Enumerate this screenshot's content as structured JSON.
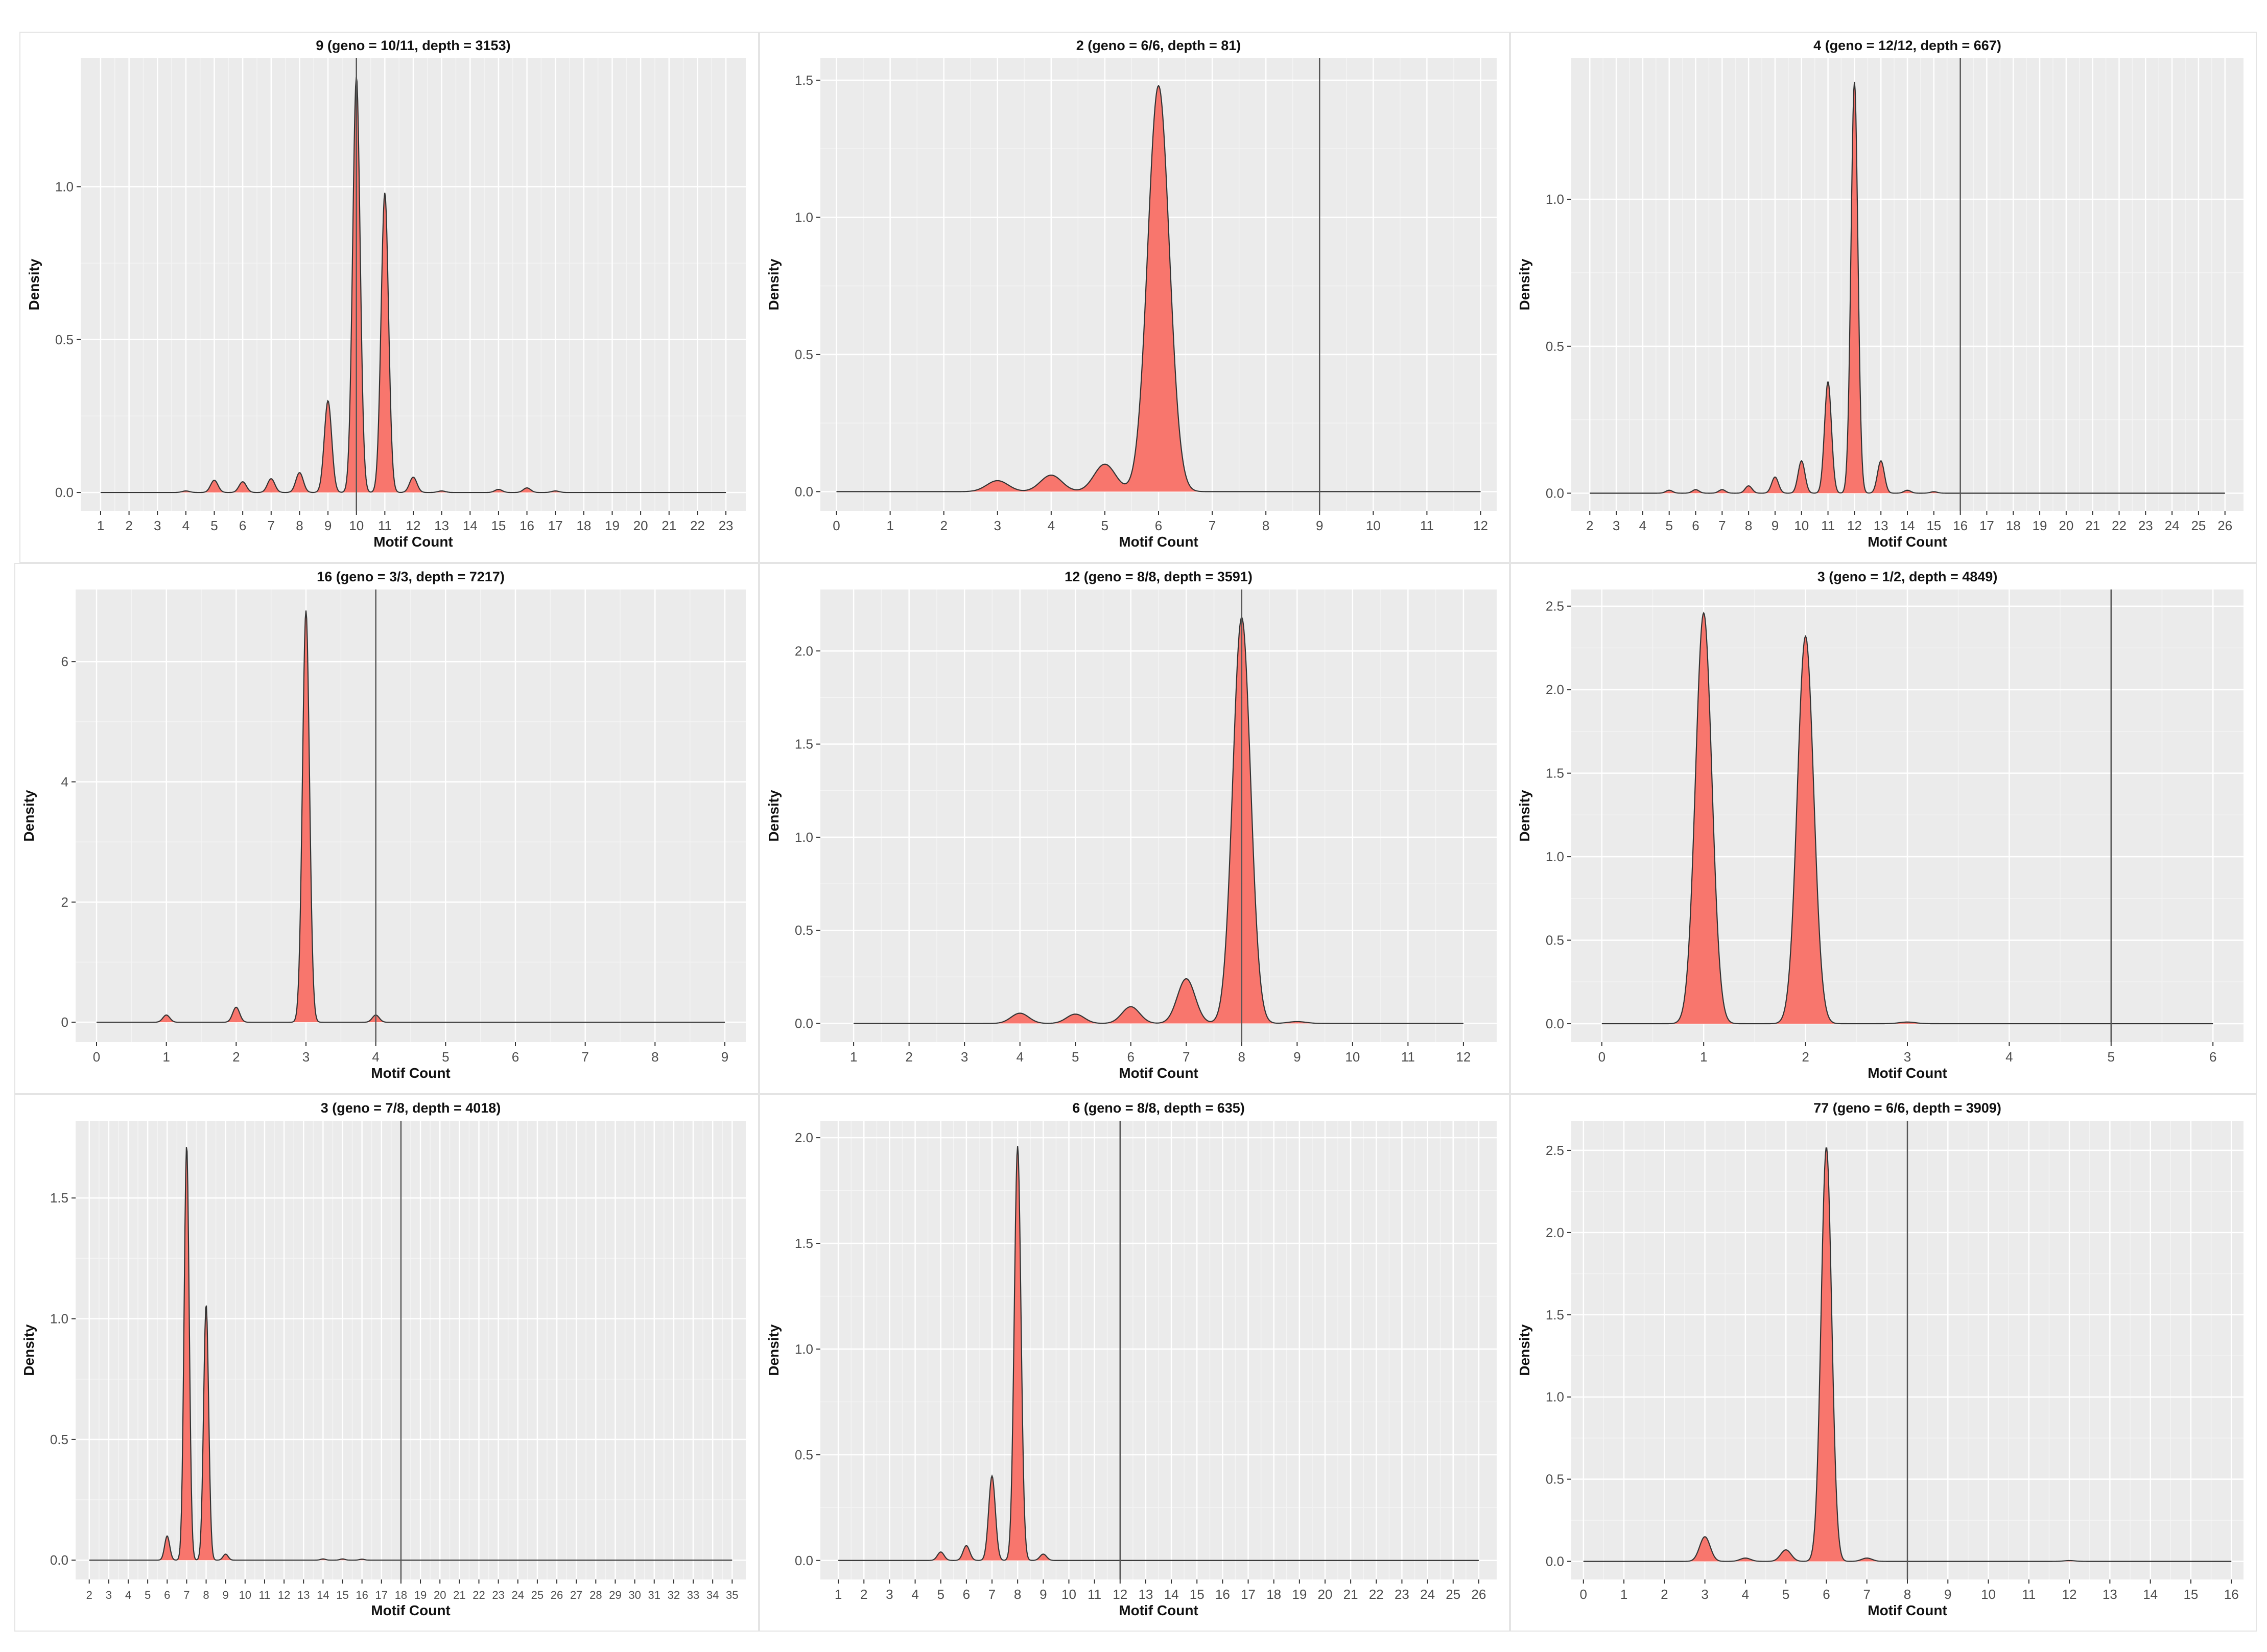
{
  "chart_data": [
    {
      "type": "area",
      "title": "9 (geno = 10/11, depth = 3153)",
      "xlabel": "Motif Count",
      "ylabel": "Density",
      "xlim": [
        0.3,
        23.7
      ],
      "ylim": [
        -0.06,
        1.42
      ],
      "x_ticks": [
        1,
        2,
        3,
        4,
        5,
        6,
        7,
        8,
        9,
        10,
        11,
        12,
        13,
        14,
        15,
        16,
        17,
        18,
        19,
        20,
        21,
        22,
        23
      ],
      "y_ticks": [
        0.0,
        0.5,
        1.0
      ],
      "y_tick_labels": [
        "0.0",
        "0.5",
        "1.0"
      ],
      "x_range": [
        1,
        23
      ],
      "vline_x": 10,
      "grid": true,
      "fill_color": "#f8766d",
      "peaks": [
        {
          "x": 4,
          "y": 0.005
        },
        {
          "x": 5,
          "y": 0.04
        },
        {
          "x": 6,
          "y": 0.035
        },
        {
          "x": 7,
          "y": 0.045
        },
        {
          "x": 8,
          "y": 0.065
        },
        {
          "x": 9,
          "y": 0.3
        },
        {
          "x": 10,
          "y": 1.36
        },
        {
          "x": 11,
          "y": 0.98
        },
        {
          "x": 12,
          "y": 0.05
        },
        {
          "x": 13,
          "y": 0.005
        },
        {
          "x": 15,
          "y": 0.01
        },
        {
          "x": 16,
          "y": 0.015
        },
        {
          "x": 17,
          "y": 0.005
        }
      ]
    },
    {
      "type": "area",
      "title": "2 (geno = 6/6, depth = 81)",
      "xlabel": "Motif Count",
      "ylabel": "Density",
      "xlim": [
        -0.3,
        12.3
      ],
      "ylim": [
        -0.07,
        1.58
      ],
      "x_ticks": [
        0,
        1,
        2,
        3,
        4,
        5,
        6,
        7,
        8,
        9,
        10,
        11,
        12
      ],
      "y_ticks": [
        0.0,
        0.5,
        1.0,
        1.5
      ],
      "y_tick_labels": [
        "0.0",
        "0.5",
        "1.0",
        "1.5"
      ],
      "x_range": [
        0,
        12
      ],
      "vline_x": 9,
      "grid": true,
      "fill_color": "#f8766d",
      "bandwidth": 0.2,
      "peaks": [
        {
          "x": 3,
          "y": 0.04
        },
        {
          "x": 4,
          "y": 0.06
        },
        {
          "x": 5,
          "y": 0.1
        },
        {
          "x": 6,
          "y": 1.48
        }
      ]
    },
    {
      "type": "area",
      "title": "4 (geno = 12/12, depth = 667)",
      "xlabel": "Motif Count",
      "ylabel": "Density",
      "xlim": [
        1.3,
        26.7
      ],
      "ylim": [
        -0.06,
        1.48
      ],
      "x_ticks": [
        2,
        3,
        4,
        5,
        6,
        7,
        8,
        9,
        10,
        11,
        12,
        13,
        14,
        15,
        16,
        17,
        18,
        19,
        20,
        21,
        22,
        23,
        24,
        25,
        26
      ],
      "y_ticks": [
        0.0,
        0.5,
        1.0
      ],
      "y_tick_labels": [
        "0.0",
        "0.5",
        "1.0"
      ],
      "x_range": [
        2,
        26
      ],
      "vline_x": 16,
      "grid": true,
      "fill_color": "#f8766d",
      "peaks": [
        {
          "x": 5,
          "y": 0.01
        },
        {
          "x": 6,
          "y": 0.012
        },
        {
          "x": 7,
          "y": 0.012
        },
        {
          "x": 8,
          "y": 0.025
        },
        {
          "x": 9,
          "y": 0.055
        },
        {
          "x": 10,
          "y": 0.11
        },
        {
          "x": 11,
          "y": 0.38
        },
        {
          "x": 12,
          "y": 1.4
        },
        {
          "x": 13,
          "y": 0.11
        },
        {
          "x": 14,
          "y": 0.01
        },
        {
          "x": 15,
          "y": 0.005
        }
      ]
    },
    {
      "type": "area",
      "title": "16 (geno = 3/3, depth = 7217)",
      "xlabel": "Motif Count",
      "ylabel": "Density",
      "xlim": [
        -0.3,
        9.3
      ],
      "ylim": [
        -0.33,
        7.2
      ],
      "x_ticks": [
        0,
        1,
        2,
        3,
        4,
        5,
        6,
        7,
        8,
        9
      ],
      "y_ticks": [
        0,
        2,
        4,
        6
      ],
      "y_tick_labels": [
        "0",
        "2",
        "4",
        "6"
      ],
      "x_range": [
        0,
        9
      ],
      "vline_x": 4,
      "grid": true,
      "fill_color": "#f8766d",
      "bandwidth": 0.05,
      "peaks": [
        {
          "x": 1,
          "y": 0.12
        },
        {
          "x": 2,
          "y": 0.25
        },
        {
          "x": 3,
          "y": 6.85
        },
        {
          "x": 4,
          "y": 0.12
        }
      ]
    },
    {
      "type": "area",
      "title": "12 (geno = 8/8, depth = 3591)",
      "xlabel": "Motif Count",
      "ylabel": "Density",
      "xlim": [
        0.4,
        12.6
      ],
      "ylim": [
        -0.1,
        2.33
      ],
      "x_ticks": [
        1,
        2,
        3,
        4,
        5,
        6,
        7,
        8,
        9,
        10,
        11,
        12
      ],
      "y_ticks": [
        0.0,
        0.5,
        1.0,
        1.5,
        2.0
      ],
      "y_tick_labels": [
        "0.0",
        "0.5",
        "1.0",
        "1.5",
        "2.0"
      ],
      "x_range": [
        1,
        12
      ],
      "vline_x": 8,
      "grid": true,
      "fill_color": "#f8766d",
      "bandwidth": 0.16,
      "peaks": [
        {
          "x": 4,
          "y": 0.055
        },
        {
          "x": 5,
          "y": 0.05
        },
        {
          "x": 6,
          "y": 0.09
        },
        {
          "x": 7,
          "y": 0.24
        },
        {
          "x": 8,
          "y": 2.18
        },
        {
          "x": 9,
          "y": 0.01
        }
      ]
    },
    {
      "type": "area",
      "title": "3 (geno = 1/2, depth = 4849)",
      "xlabel": "Motif Count",
      "ylabel": "Density",
      "xlim": [
        -0.3,
        6.3
      ],
      "ylim": [
        -0.11,
        2.6
      ],
      "x_ticks": [
        0,
        1,
        2,
        3,
        4,
        5,
        6
      ],
      "y_ticks": [
        0.0,
        0.5,
        1.0,
        1.5,
        2.0,
        2.5
      ],
      "y_tick_labels": [
        "0.0",
        "0.5",
        "1.0",
        "1.5",
        "2.0",
        "2.5"
      ],
      "x_range": [
        0,
        6
      ],
      "vline_x": 5,
      "grid": true,
      "fill_color": "#f8766d",
      "bandwidth": 0.08,
      "peaks": [
        {
          "x": 1,
          "y": 2.46
        },
        {
          "x": 2,
          "y": 2.32
        },
        {
          "x": 3,
          "y": 0.01
        }
      ]
    },
    {
      "type": "area",
      "title": "3 (geno = 7/8, depth = 4018)",
      "xlabel": "Motif Count",
      "ylabel": "Density",
      "xlim": [
        1.3,
        35.7
      ],
      "ylim": [
        -0.08,
        1.82
      ],
      "x_ticks": [
        2,
        3,
        4,
        5,
        6,
        7,
        8,
        9,
        10,
        11,
        12,
        13,
        14,
        15,
        16,
        17,
        18,
        19,
        20,
        21,
        22,
        23,
        24,
        25,
        26,
        27,
        28,
        29,
        30,
        31,
        32,
        33,
        34,
        35
      ],
      "y_ticks": [
        0.0,
        0.5,
        1.0,
        1.5
      ],
      "y_tick_labels": [
        "0.0",
        "0.5",
        "1.0",
        "1.5"
      ],
      "x_range": [
        2,
        35
      ],
      "vline_x": 18,
      "grid": true,
      "fill_color": "#f8766d",
      "peaks": [
        {
          "x": 6,
          "y": 0.1
        },
        {
          "x": 7,
          "y": 1.72
        },
        {
          "x": 8,
          "y": 1.06
        },
        {
          "x": 9,
          "y": 0.025
        },
        {
          "x": 14,
          "y": 0.005
        },
        {
          "x": 15,
          "y": 0.005
        },
        {
          "x": 16,
          "y": 0.004
        }
      ]
    },
    {
      "type": "area",
      "title": "6 (geno = 8/8, depth = 635)",
      "xlabel": "Motif Count",
      "ylabel": "Density",
      "xlim": [
        0.3,
        26.7
      ],
      "ylim": [
        -0.09,
        2.08
      ],
      "x_ticks": [
        1,
        2,
        3,
        4,
        5,
        6,
        7,
        8,
        9,
        10,
        11,
        12,
        13,
        14,
        15,
        16,
        17,
        18,
        19,
        20,
        21,
        22,
        23,
        24,
        25,
        26
      ],
      "y_ticks": [
        0.0,
        0.5,
        1.0,
        1.5,
        2.0
      ],
      "y_tick_labels": [
        "0.0",
        "0.5",
        "1.0",
        "1.5",
        "2.0"
      ],
      "x_range": [
        1,
        26
      ],
      "vline_x": 12,
      "grid": true,
      "fill_color": "#f8766d",
      "peaks": [
        {
          "x": 5,
          "y": 0.04
        },
        {
          "x": 6,
          "y": 0.07
        },
        {
          "x": 7,
          "y": 0.4
        },
        {
          "x": 8,
          "y": 1.96
        },
        {
          "x": 9,
          "y": 0.03
        }
      ]
    },
    {
      "type": "area",
      "title": "77 (geno = 6/6, depth = 3909)",
      "xlabel": "Motif Count",
      "ylabel": "Density",
      "xlim": [
        -0.3,
        16.3
      ],
      "ylim": [
        -0.11,
        2.68
      ],
      "x_ticks": [
        0,
        1,
        2,
        3,
        4,
        5,
        6,
        7,
        8,
        9,
        10,
        11,
        12,
        13,
        14,
        15,
        16
      ],
      "y_ticks": [
        0.0,
        0.5,
        1.0,
        1.5,
        2.0,
        2.5
      ],
      "y_tick_labels": [
        "0.0",
        "0.5",
        "1.0",
        "1.5",
        "2.0",
        "2.5"
      ],
      "x_range": [
        0,
        16
      ],
      "vline_x": 8,
      "grid": true,
      "fill_color": "#f8766d",
      "peaks": [
        {
          "x": 3,
          "y": 0.15
        },
        {
          "x": 4,
          "y": 0.02
        },
        {
          "x": 5,
          "y": 0.07
        },
        {
          "x": 6,
          "y": 2.52
        },
        {
          "x": 7,
          "y": 0.02
        },
        {
          "x": 12,
          "y": 0.005
        }
      ]
    }
  ]
}
